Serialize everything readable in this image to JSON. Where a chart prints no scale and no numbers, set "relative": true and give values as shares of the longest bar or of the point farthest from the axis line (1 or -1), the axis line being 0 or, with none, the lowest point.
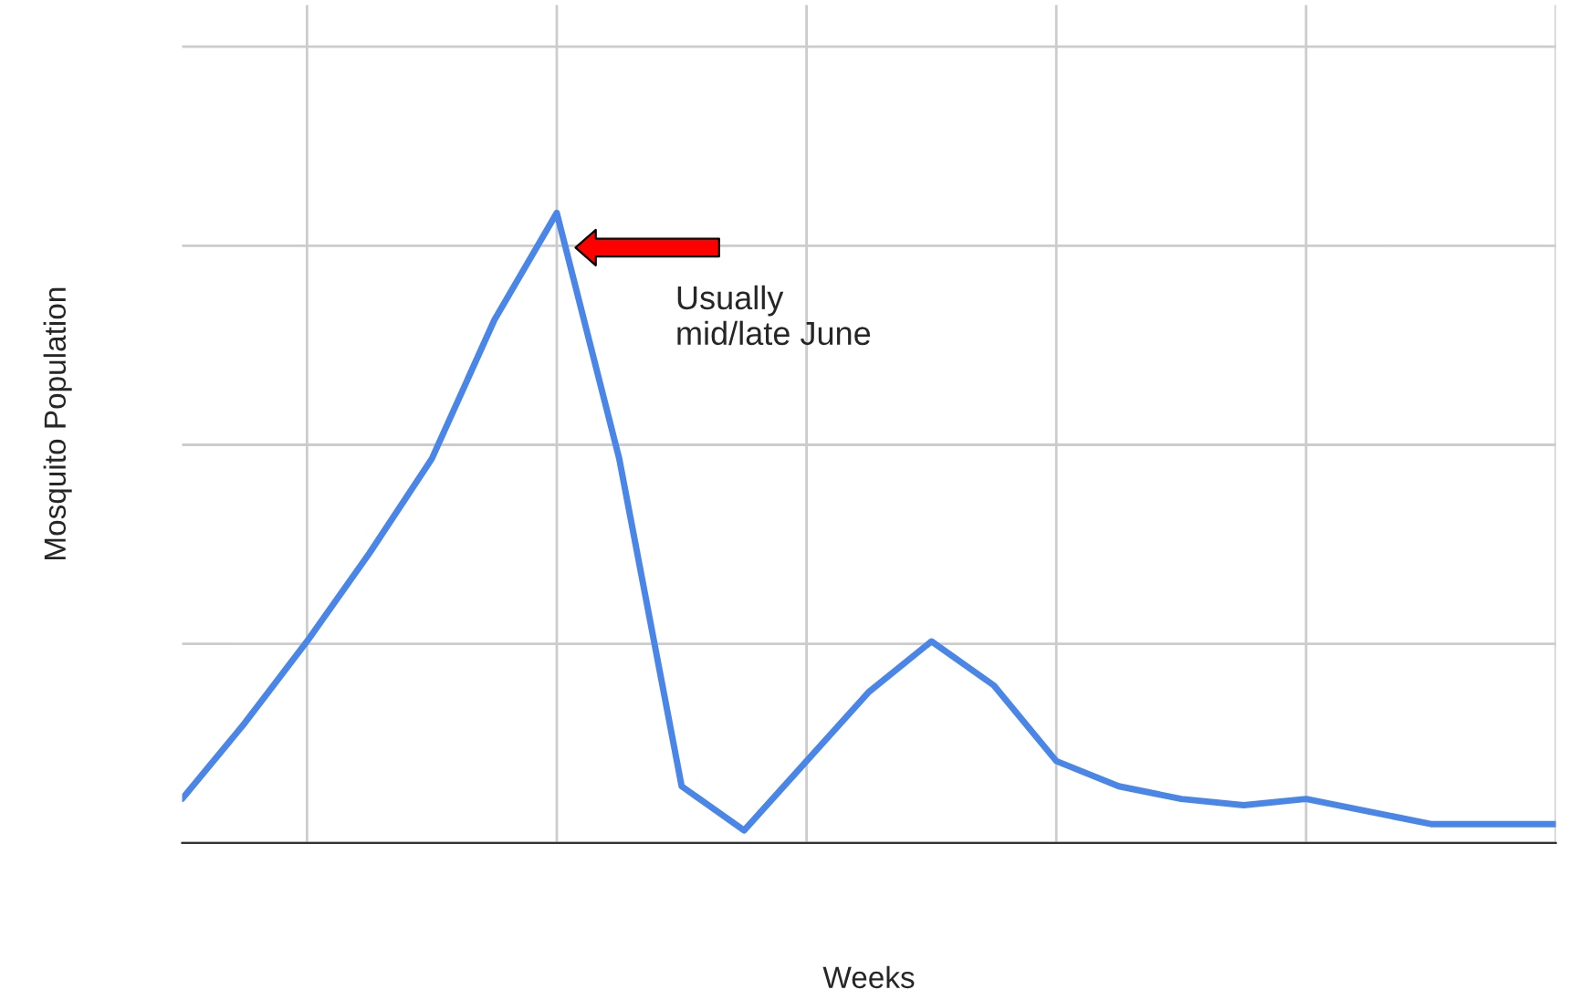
{
  "chart_data": {
    "type": "line",
    "relative": true,
    "xlabel": "Weeks",
    "ylabel": "Mosquito Population",
    "categories": [
      null,
      null,
      null,
      null,
      null,
      null,
      null,
      null,
      null,
      null,
      null,
      null,
      null,
      null,
      null,
      null,
      null,
      null,
      null,
      null,
      null,
      null,
      null
    ],
    "series": [
      {
        "color": "#4a86e8",
        "values": [
          0.07,
          0.19,
          0.32,
          0.46,
          0.61,
          0.83,
          1.0,
          0.61,
          0.09,
          0.02,
          0.13,
          0.24,
          0.32,
          0.25,
          0.13,
          0.09,
          0.07,
          0.06,
          0.07,
          0.05,
          0.03,
          0.03,
          0.03
        ]
      }
    ],
    "annotations": [
      "Usually\nmid/late June"
    ],
    "grid": true,
    "legend": false,
    "marker": "none",
    "line_style": "solid"
  }
}
